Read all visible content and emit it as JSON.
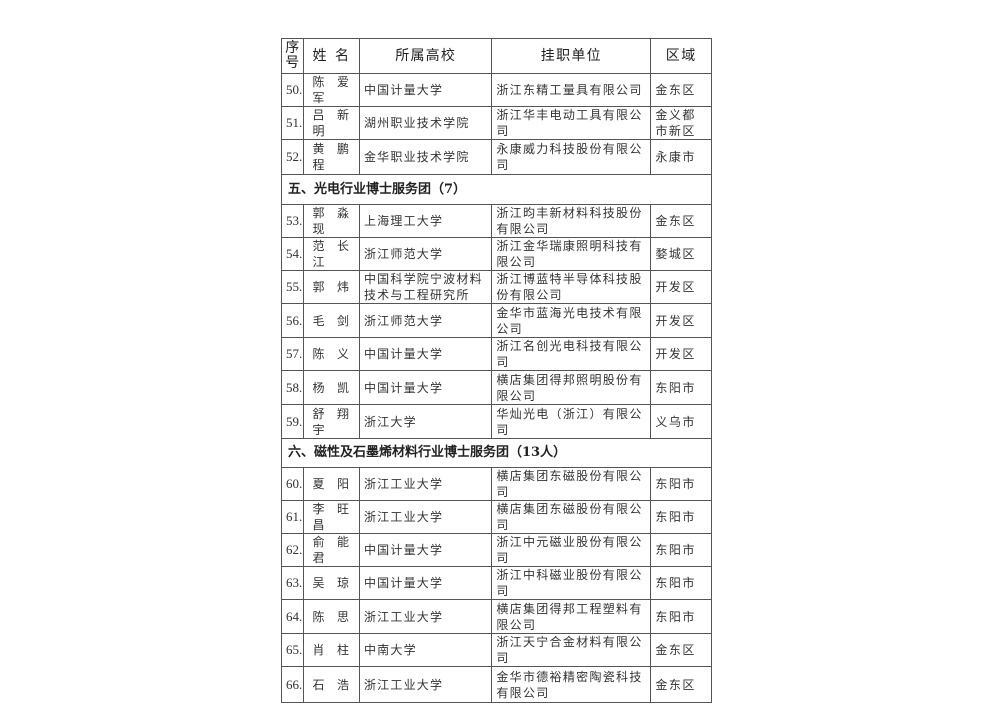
{
  "headers": {
    "no": "序号",
    "name": "姓名",
    "school": "所属高校",
    "unit": "挂职单位",
    "area": "区域"
  },
  "rows": [
    {
      "no": "50.",
      "name": "陈爱军",
      "school": "中国计量大学",
      "unit": "浙江东精工量具有限公司",
      "area": "金东区"
    },
    {
      "no": "51.",
      "name": "吕新明",
      "school": "湖州职业技术学院",
      "unit": "浙江华丰电动工具有限公司",
      "area": "金义都市新区"
    },
    {
      "no": "52.",
      "name": "黄鹏程",
      "school": "金华职业技术学院",
      "unit": "永康威力科技股份有限公司",
      "area": "永康市"
    },
    {
      "section": "五、光电行业博士服务团（7）"
    },
    {
      "no": "53.",
      "name": "郭淼现",
      "school": "上海理工大学",
      "unit": "浙江昀丰新材料科技股份有限公司",
      "area": "金东区"
    },
    {
      "no": "54.",
      "name": "范长江",
      "school": "浙江师范大学",
      "unit": "浙江金华瑞康照明科技有限公司",
      "area": "婺城区"
    },
    {
      "no": "55.",
      "name": "郭炜",
      "school": "中国科学院宁波材料技术与工程研究所",
      "unit": "浙江博蓝特半导体科技股份有限公司",
      "area": "开发区"
    },
    {
      "no": "56.",
      "name": "毛剑",
      "school": "浙江师范大学",
      "unit": "金华市蓝海光电技术有限公司",
      "area": "开发区"
    },
    {
      "no": "57.",
      "name": "陈义",
      "school": "中国计量大学",
      "unit": "浙江名创光电科技有限公司",
      "area": "开发区"
    },
    {
      "no": "58.",
      "name": "杨凯",
      "school": "中国计量大学",
      "unit": "横店集团得邦照明股份有限公司",
      "area": "东阳市"
    },
    {
      "no": "59.",
      "name": "舒翔宇",
      "school": "浙江大学",
      "unit": "华灿光电（浙江）有限公司",
      "area": "义乌市"
    },
    {
      "section": "六、磁性及石墨烯材料行业博士服务团（13人）"
    },
    {
      "no": "60.",
      "name": "夏阳",
      "school": "浙江工业大学",
      "unit": "横店集团东磁股份有限公司",
      "area": "东阳市"
    },
    {
      "no": "61.",
      "name": "李旺昌",
      "school": "浙江工业大学",
      "unit": "横店集团东磁股份有限公司",
      "area": "东阳市"
    },
    {
      "no": "62.",
      "name": "俞能君",
      "school": "中国计量大学",
      "unit": "浙江中元磁业股份有限公司",
      "area": "东阳市"
    },
    {
      "no": "63.",
      "name": "吴琼",
      "school": "中国计量大学",
      "unit": "浙江中科磁业股份有限公司",
      "area": "东阳市"
    },
    {
      "no": "64.",
      "name": "陈思",
      "school": "浙江工业大学",
      "unit": "横店集团得邦工程塑料有限公司",
      "area": "东阳市"
    },
    {
      "no": "65.",
      "name": "肖柱",
      "school": "中南大学",
      "unit": "浙江天宁合金材料有限公司",
      "area": "金东区"
    },
    {
      "no": "66.",
      "name": "石浩",
      "school": "浙江工业大学",
      "unit": "金华市德裕精密陶瓷科技有限公司",
      "area": "金东区"
    }
  ]
}
